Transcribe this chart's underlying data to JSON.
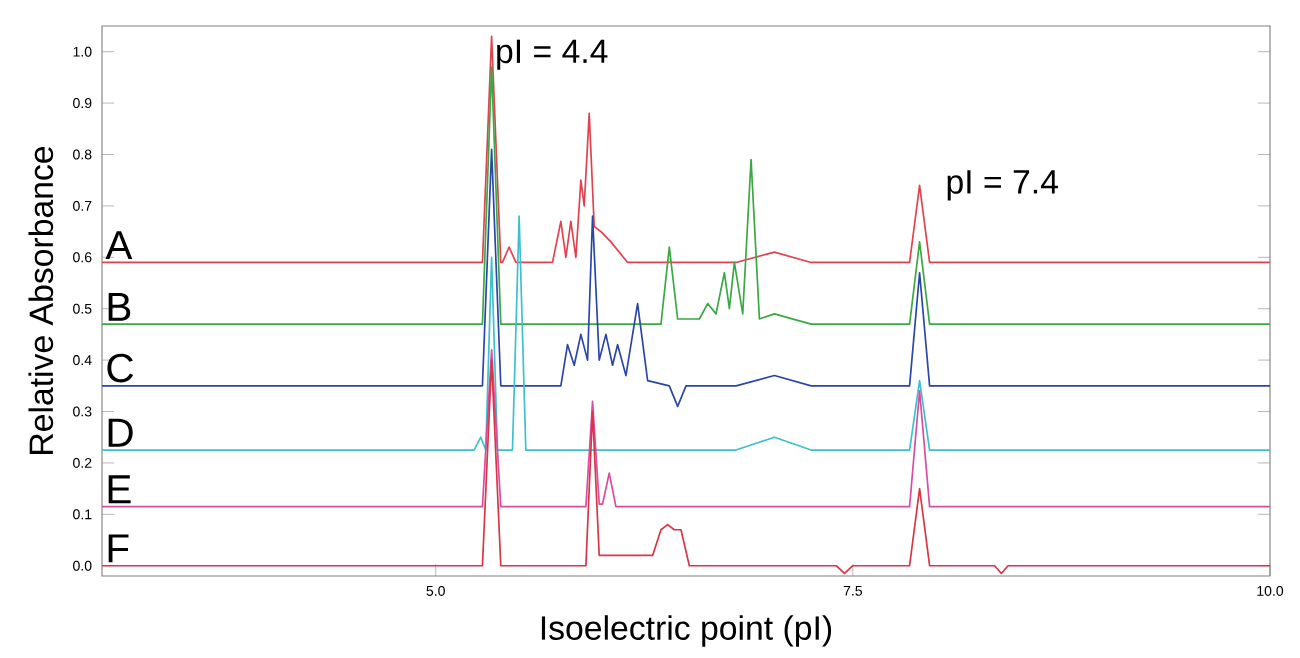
{
  "chart_data": {
    "type": "line",
    "xlabel": "Isoelectric point (pI)",
    "ylabel": "Relative Absorbance",
    "xlim": [
      3.0,
      10.0
    ],
    "ylim": [
      -0.02,
      1.05
    ],
    "xticks": [
      {
        "value": 5.0,
        "label": "5.0"
      },
      {
        "value": 7.5,
        "label": "7.5"
      },
      {
        "value": 10.0,
        "label": "10.0"
      }
    ],
    "yticks": [
      {
        "value": 0.0,
        "label": "0.0"
      },
      {
        "value": 0.1,
        "label": "0.1"
      },
      {
        "value": 0.2,
        "label": "0.2"
      },
      {
        "value": 0.3,
        "label": "0.3"
      },
      {
        "value": 0.4,
        "label": "0.4"
      },
      {
        "value": 0.5,
        "label": "0.5"
      },
      {
        "value": 0.6,
        "label": "0.6"
      },
      {
        "value": 0.7,
        "label": "0.7"
      },
      {
        "value": 0.8,
        "label": "0.8"
      },
      {
        "value": 0.9,
        "label": "0.9"
      },
      {
        "value": 1.0,
        "label": "1.0"
      }
    ],
    "annotations": [
      {
        "text": "pI = 4.4",
        "x": 5.335,
        "y": 1.03
      },
      {
        "text": "pI = 7.4",
        "x": 7.9,
        "y": 0.74
      }
    ],
    "series": [
      {
        "name": "A",
        "color": "#e0434f",
        "x": [
          3.0,
          4.0,
          5.28,
          5.335,
          5.39,
          5.4,
          5.44,
          5.48,
          5.7,
          5.75,
          5.78,
          5.81,
          5.84,
          5.87,
          5.89,
          5.92,
          5.95,
          5.99,
          6.05,
          6.15,
          6.8,
          7.03,
          7.25,
          7.84,
          7.9,
          7.96,
          8.5,
          10.0
        ],
        "values": [
          0.59,
          0.59,
          0.59,
          1.03,
          0.59,
          0.59,
          0.62,
          0.59,
          0.59,
          0.67,
          0.6,
          0.67,
          0.6,
          0.75,
          0.7,
          0.88,
          0.66,
          0.65,
          0.63,
          0.59,
          0.59,
          0.61,
          0.59,
          0.59,
          0.74,
          0.59,
          0.59,
          0.59
        ]
      },
      {
        "name": "B",
        "color": "#3aa843",
        "x": [
          3.0,
          5.28,
          5.335,
          5.39,
          6.35,
          6.4,
          6.45,
          6.58,
          6.63,
          6.68,
          6.73,
          6.76,
          6.79,
          6.84,
          6.89,
          6.94,
          7.03,
          7.25,
          7.84,
          7.9,
          7.96,
          10.0
        ],
        "values": [
          0.47,
          0.47,
          0.97,
          0.47,
          0.47,
          0.62,
          0.48,
          0.48,
          0.51,
          0.49,
          0.57,
          0.5,
          0.59,
          0.49,
          0.79,
          0.48,
          0.49,
          0.47,
          0.47,
          0.63,
          0.47,
          0.47
        ]
      },
      {
        "name": "C",
        "color": "#2a46a8",
        "x": [
          3.0,
          5.28,
          5.335,
          5.39,
          5.75,
          5.79,
          5.83,
          5.87,
          5.91,
          5.94,
          5.98,
          6.02,
          6.06,
          6.09,
          6.14,
          6.21,
          6.27,
          6.4,
          6.45,
          6.5,
          6.8,
          7.03,
          7.25,
          7.84,
          7.9,
          7.96,
          10.0
        ],
        "values": [
          0.35,
          0.35,
          0.81,
          0.35,
          0.35,
          0.43,
          0.39,
          0.45,
          0.4,
          0.68,
          0.4,
          0.45,
          0.39,
          0.43,
          0.37,
          0.51,
          0.36,
          0.35,
          0.31,
          0.35,
          0.35,
          0.37,
          0.35,
          0.35,
          0.57,
          0.35,
          0.35
        ]
      },
      {
        "name": "D",
        "color": "#3dbfcf",
        "x": [
          3.0,
          5.23,
          5.27,
          5.3,
          5.335,
          5.37,
          5.46,
          5.5,
          5.54,
          6.8,
          7.03,
          7.25,
          7.84,
          7.9,
          7.96,
          10.0
        ],
        "values": [
          0.225,
          0.225,
          0.25,
          0.225,
          0.6,
          0.225,
          0.225,
          0.68,
          0.225,
          0.225,
          0.25,
          0.225,
          0.225,
          0.36,
          0.225,
          0.225
        ]
      },
      {
        "name": "E",
        "color": "#d94ca0",
        "x": [
          3.0,
          5.28,
          5.335,
          5.39,
          5.9,
          5.94,
          5.98,
          6.0,
          6.04,
          6.08,
          7.84,
          7.9,
          7.96,
          10.0
        ],
        "values": [
          0.115,
          0.115,
          0.42,
          0.115,
          0.115,
          0.32,
          0.12,
          0.12,
          0.18,
          0.115,
          0.115,
          0.34,
          0.115,
          0.115
        ]
      },
      {
        "name": "F",
        "color": "#d93545",
        "x": [
          3.0,
          5.28,
          5.335,
          5.39,
          5.9,
          5.94,
          5.98,
          6.3,
          6.35,
          6.39,
          6.43,
          6.47,
          6.52,
          7.4,
          7.45,
          7.5,
          7.84,
          7.9,
          7.96,
          8.35,
          8.39,
          8.43,
          10.0
        ],
        "values": [
          0.0,
          0.0,
          0.4,
          0.0,
          0.0,
          0.3,
          0.02,
          0.02,
          0.07,
          0.08,
          0.07,
          0.07,
          0.0,
          0.0,
          -0.015,
          0.0,
          0.0,
          0.15,
          0.0,
          0.0,
          -0.015,
          0.0,
          0.0
        ]
      }
    ]
  }
}
